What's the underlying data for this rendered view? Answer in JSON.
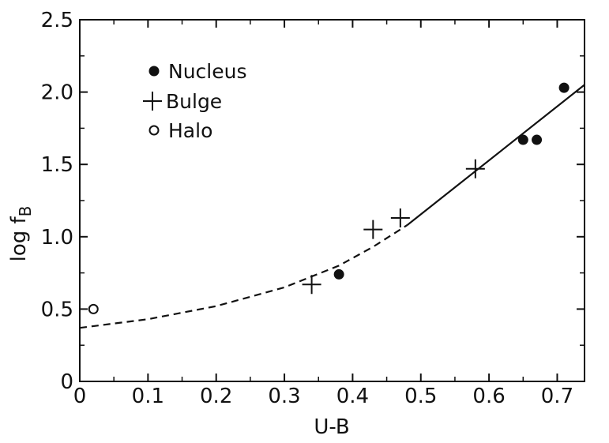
{
  "chart_data": {
    "type": "scatter",
    "xlabel": "U-B",
    "ylabel": "log f",
    "ylabel_subscript": "B",
    "xlim": [
      0,
      0.74
    ],
    "ylim": [
      0,
      2.5
    ],
    "x_ticks": [
      "0",
      "0.1",
      "0.2",
      "0.3",
      "0.4",
      "0.5",
      "0.6",
      "0.7"
    ],
    "x_tick_values": [
      0,
      0.1,
      0.2,
      0.3,
      0.4,
      0.5,
      0.6,
      0.7
    ],
    "y_ticks": [
      "0",
      "0.5",
      "1.0",
      "1.5",
      "2.0",
      "2.5"
    ],
    "y_tick_values": [
      0,
      0.5,
      1.0,
      1.5,
      2.0,
      2.5
    ],
    "legend_position": "top-left",
    "series": [
      {
        "name": "Nucleus",
        "marker": "filled-circle",
        "points": [
          [
            0.38,
            0.74
          ],
          [
            0.65,
            1.67
          ],
          [
            0.67,
            1.67
          ],
          [
            0.71,
            2.03
          ]
        ]
      },
      {
        "name": "Bulge",
        "marker": "plus",
        "points": [
          [
            0.34,
            0.67
          ],
          [
            0.43,
            1.05
          ],
          [
            0.47,
            1.13
          ],
          [
            0.58,
            1.47
          ]
        ]
      },
      {
        "name": "Halo",
        "marker": "open-circle",
        "points": [
          [
            0.02,
            0.5
          ]
        ]
      }
    ],
    "fit_dashed": [
      [
        0.0,
        0.37
      ],
      [
        0.1,
        0.43
      ],
      [
        0.2,
        0.52
      ],
      [
        0.3,
        0.65
      ],
      [
        0.38,
        0.8
      ],
      [
        0.43,
        0.93
      ],
      [
        0.48,
        1.08
      ]
    ],
    "fit_solid": [
      [
        0.48,
        1.08
      ],
      [
        0.74,
        2.05
      ]
    ],
    "colors": {
      "ink": "#111111",
      "background": "#ffffff"
    }
  }
}
